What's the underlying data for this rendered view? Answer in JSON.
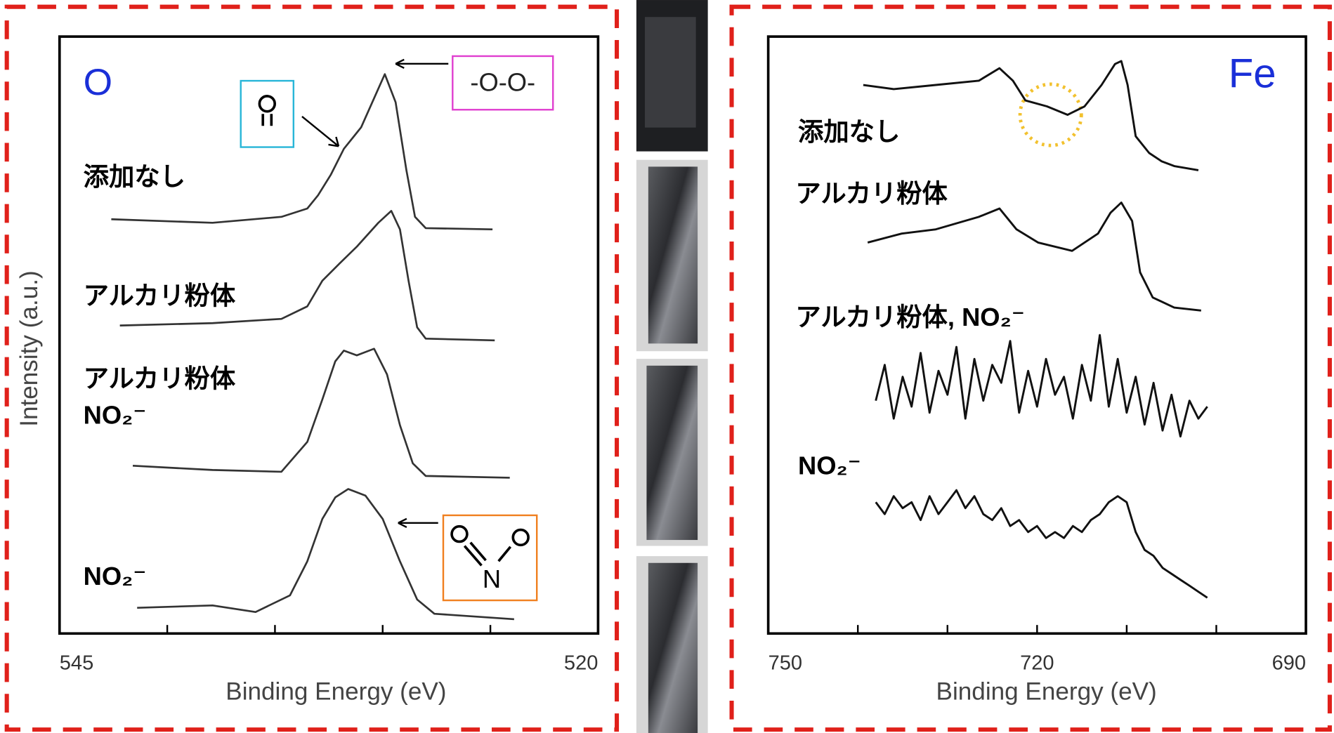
{
  "chart_data": [
    {
      "type": "line",
      "element_label": "O",
      "xlabel": "Binding Energy (eV)",
      "ylabel": "Intensity (a.u.)",
      "xlim": [
        545,
        520
      ],
      "xticks": [
        545,
        520
      ],
      "xminorticks": [
        540,
        535,
        530,
        525
      ],
      "ylim": [
        0,
        10
      ],
      "annotations": [
        "-O-O-",
        "N"
      ],
      "series": [
        {
          "name": "添加なし",
          "color": "#333333",
          "x": [
            542.6,
            537.9,
            534.7,
            533.5,
            533.0,
            532.4,
            531.8,
            531.0,
            529.9,
            529.4,
            528.9,
            528.5,
            528.0,
            524.9
          ],
          "values": [
            6.94,
            6.88,
            6.98,
            7.12,
            7.34,
            7.69,
            8.12,
            8.48,
            9.37,
            8.9,
            7.76,
            6.98,
            6.79,
            6.77
          ]
        },
        {
          "name": "アルカリ粉体",
          "color": "#333333",
          "x": [
            542.2,
            537.9,
            534.7,
            533.5,
            532.8,
            532.0,
            531.2,
            530.2,
            529.6,
            529.2,
            528.8,
            528.4,
            528.0,
            524.8
          ],
          "values": [
            5.16,
            5.2,
            5.27,
            5.48,
            5.91,
            6.2,
            6.48,
            6.88,
            7.08,
            6.77,
            5.91,
            5.13,
            4.94,
            4.91
          ]
        },
        {
          "name": "アルカリ粉体\nNO₂⁻",
          "color": "#333333",
          "x": [
            541.6,
            537.9,
            534.7,
            533.5,
            532.8,
            532.2,
            531.8,
            531.2,
            530.4,
            529.8,
            529.2,
            528.6,
            528.0,
            524.1
          ],
          "values": [
            2.81,
            2.74,
            2.71,
            3.21,
            3.92,
            4.56,
            4.74,
            4.66,
            4.77,
            4.34,
            3.49,
            2.85,
            2.64,
            2.61
          ]
        },
        {
          "name": "NO₂⁻",
          "color": "#333333",
          "x": [
            541.4,
            537.9,
            535.9,
            534.3,
            533.5,
            532.8,
            532.2,
            531.6,
            530.8,
            530.0,
            529.2,
            528.4,
            527.6,
            523.9
          ],
          "values": [
            0.43,
            0.47,
            0.36,
            0.64,
            1.21,
            1.92,
            2.28,
            2.42,
            2.31,
            1.92,
            1.21,
            0.57,
            0.33,
            0.24
          ]
        }
      ]
    },
    {
      "type": "line",
      "element_label": "Fe",
      "xlabel": "Binding Energy (eV)",
      "xlim": [
        750,
        690
      ],
      "xticks": [
        750,
        720,
        690
      ],
      "xminorticks": [
        740,
        730,
        710,
        700
      ],
      "ylim": [
        0,
        10
      ],
      "series": [
        {
          "name": "添加なし",
          "color": "#111111",
          "x": [
            739.4,
            736.0,
            731.3,
            726.5,
            724.2,
            722.7,
            721.3,
            718.9,
            716.6,
            714.7,
            712.8,
            711.3,
            710.6,
            709.9,
            709.0,
            707.5,
            706.1,
            704.7,
            702.0
          ],
          "values": [
            9.19,
            9.12,
            9.19,
            9.26,
            9.47,
            9.26,
            8.93,
            8.83,
            8.69,
            8.83,
            9.19,
            9.54,
            9.59,
            9.19,
            8.33,
            8.05,
            7.91,
            7.83,
            7.76
          ]
        },
        {
          "name": "アルカリ粉体",
          "color": "#111111",
          "x": [
            738.9,
            735.1,
            731.3,
            726.5,
            724.2,
            722.3,
            719.9,
            716.1,
            713.2,
            711.8,
            710.6,
            709.4,
            708.5,
            707.1,
            704.7,
            701.7
          ],
          "values": [
            6.55,
            6.7,
            6.77,
            6.98,
            7.12,
            6.77,
            6.55,
            6.41,
            6.7,
            7.05,
            7.22,
            6.91,
            6.05,
            5.63,
            5.46,
            5.41
          ]
        },
        {
          "name": "アルカリ粉体, NO₂⁻",
          "color": "#111111",
          "x": [
            738,
            737,
            736,
            735,
            734,
            733,
            732,
            731,
            730,
            729,
            728,
            727,
            726,
            725,
            724,
            723,
            722,
            721,
            720,
            719,
            718,
            717,
            716,
            715,
            714,
            713,
            712,
            711,
            710,
            709,
            708,
            707,
            706,
            705,
            704,
            703,
            702,
            701
          ],
          "values": [
            3.9,
            4.5,
            3.6,
            4.3,
            3.8,
            4.7,
            3.7,
            4.4,
            4.0,
            4.8,
            3.6,
            4.6,
            3.9,
            4.5,
            4.2,
            4.9,
            3.7,
            4.4,
            3.8,
            4.6,
            4.0,
            4.3,
            3.6,
            4.5,
            3.9,
            5.0,
            3.8,
            4.6,
            3.7,
            4.3,
            3.5,
            4.2,
            3.4,
            4.0,
            3.3,
            3.9,
            3.6,
            3.8
          ]
        },
        {
          "name": "NO₂⁻",
          "color": "#111111",
          "x": [
            738,
            737,
            736,
            735,
            734,
            733,
            732,
            731,
            730,
            729,
            728,
            727,
            726,
            725,
            724,
            723,
            722,
            721,
            720,
            719,
            718,
            717,
            716,
            715,
            714,
            713,
            712,
            711,
            710,
            709,
            708,
            707,
            706,
            705,
            704,
            703,
            702,
            701
          ],
          "values": [
            2.2,
            2.0,
            2.3,
            2.1,
            2.2,
            1.9,
            2.3,
            2.0,
            2.2,
            2.4,
            2.1,
            2.3,
            2.0,
            1.9,
            2.1,
            1.8,
            1.9,
            1.7,
            1.8,
            1.6,
            1.7,
            1.6,
            1.8,
            1.7,
            1.9,
            2.0,
            2.2,
            2.3,
            2.2,
            1.7,
            1.4,
            1.3,
            1.1,
            1.0,
            0.9,
            0.8,
            0.7,
            0.6
          ]
        }
      ]
    }
  ]
}
